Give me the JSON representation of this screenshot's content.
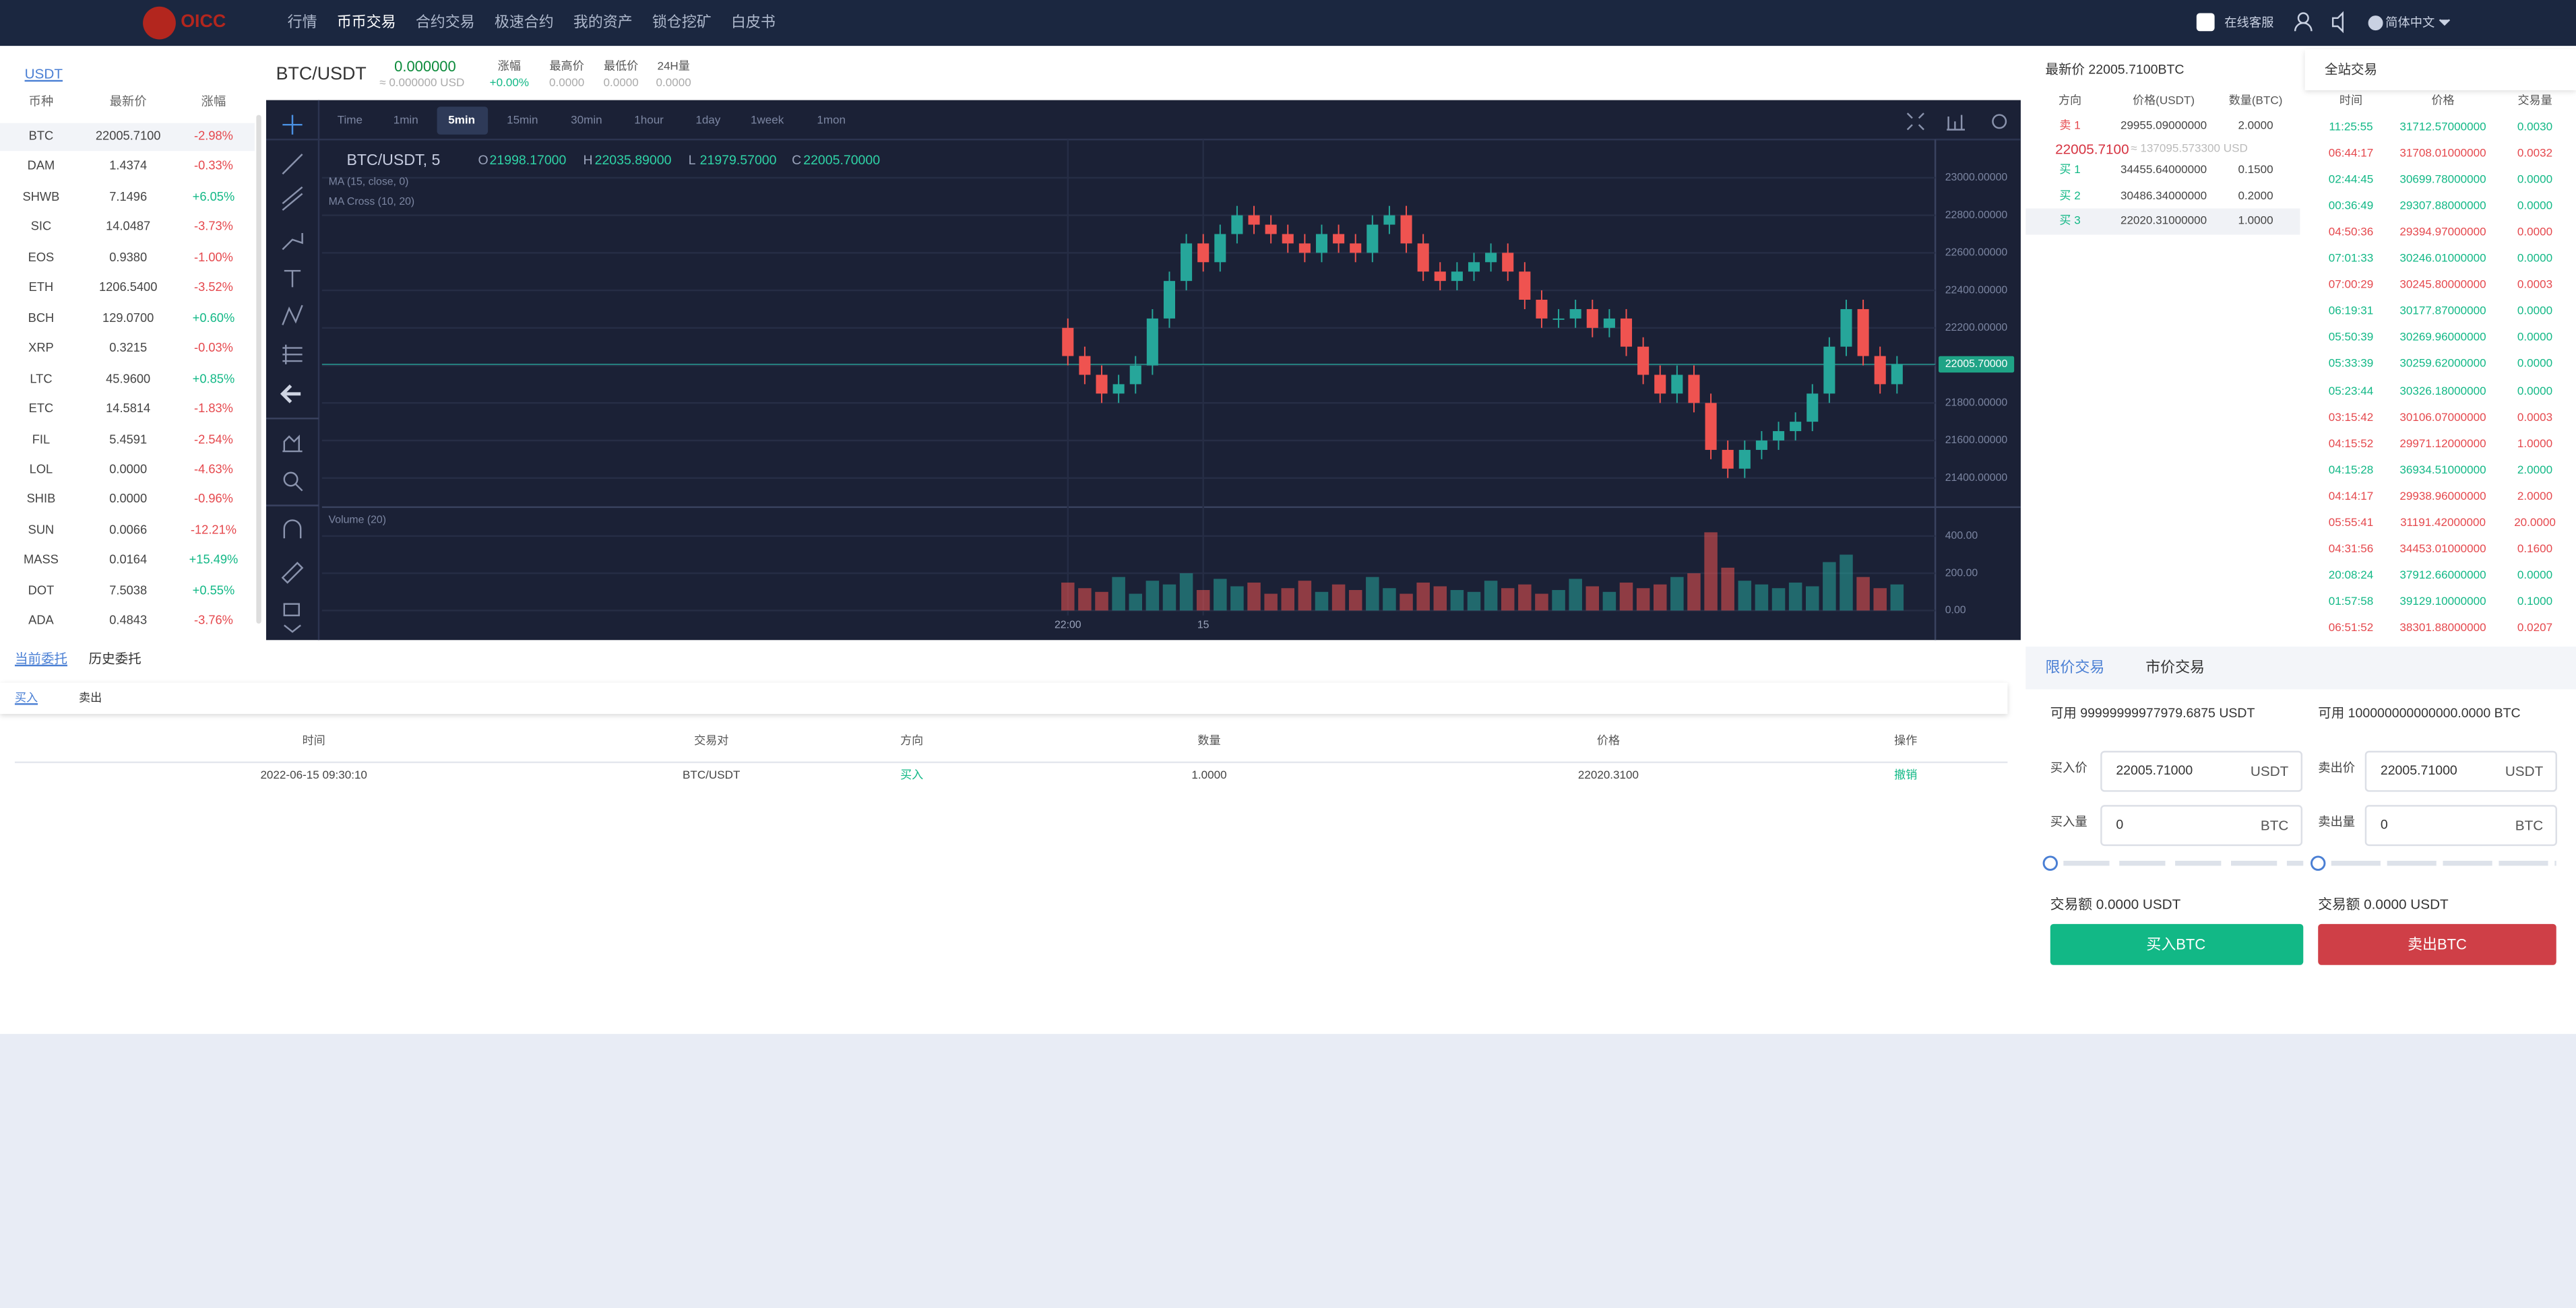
{
  "header": {
    "logo": "OICC",
    "nav": [
      "行情",
      "币币交易",
      "合约交易",
      "极速合约",
      "我的资产",
      "锁仓挖矿",
      "白皮书"
    ],
    "nav_active": 1,
    "support": "在线客服",
    "language": "简体中文"
  },
  "market_list": {
    "tab": "USDT",
    "headers": [
      "币种",
      "最新价",
      "涨幅"
    ],
    "rows": [
      [
        "BTC",
        "22005.7100",
        "-2.98%"
      ],
      [
        "DAM",
        "1.4374",
        "-0.33%"
      ],
      [
        "SHWB",
        "7.1496",
        "+6.05%"
      ],
      [
        "SIC",
        "14.0487",
        "-3.73%"
      ],
      [
        "EOS",
        "0.9380",
        "-1.00%"
      ],
      [
        "ETH",
        "1206.5400",
        "-3.52%"
      ],
      [
        "BCH",
        "129.0700",
        "+0.60%"
      ],
      [
        "XRP",
        "0.3215",
        "-0.03%"
      ],
      [
        "LTC",
        "45.9600",
        "+0.85%"
      ],
      [
        "ETC",
        "14.5814",
        "-1.83%"
      ],
      [
        "FIL",
        "5.4591",
        "-2.54%"
      ],
      [
        "LOL",
        "0.0000",
        "-4.63%"
      ],
      [
        "SHIB",
        "0.0000",
        "-0.96%"
      ],
      [
        "SUN",
        "0.0066",
        "-12.21%"
      ],
      [
        "MASS",
        "0.0164",
        "+15.49%"
      ],
      [
        "DOT",
        "7.5038",
        "+0.55%"
      ],
      [
        "ADA",
        "0.4843",
        "-3.76%"
      ]
    ]
  },
  "ticker": {
    "pair": "BTC/USDT",
    "price": "0.000000",
    "price_usd": "≈ 0.000000 USD",
    "stats": [
      {
        "label": "涨幅",
        "value": "+0.00%"
      },
      {
        "label": "最高价",
        "value": "0.0000"
      },
      {
        "label": "最低价",
        "value": "0.0000"
      },
      {
        "label": "24H量",
        "value": "0.0000"
      }
    ]
  },
  "toolbar": {
    "intervals": [
      "Time",
      "1min",
      "5min",
      "15min",
      "30min",
      "1hour",
      "1day",
      "1week",
      "1mon"
    ],
    "active": 2
  },
  "chart_data": {
    "type": "candlestick",
    "title": "BTC/USDT, 5",
    "ohlc_labels": [
      "O",
      "H",
      "L",
      "C"
    ],
    "ohlc_values": [
      "21998.17000",
      "22035.89000",
      "21979.57000",
      "22005.70000"
    ],
    "indicators": [
      "MA (15, close, 0)",
      "MA Cross (10, 20)"
    ],
    "volume_title": "Volume (20)",
    "up_color": "#26a69a",
    "down_color": "#ef5350",
    "categories": [
      "22:00",
      null,
      null,
      null,
      null,
      null,
      null,
      null,
      "15",
      null,
      null,
      null,
      null,
      null,
      null,
      null,
      null,
      null,
      null,
      null,
      null,
      null,
      null,
      null,
      null,
      null,
      null,
      null,
      null,
      null,
      null,
      null,
      null,
      null,
      null,
      null,
      null,
      null,
      null,
      null,
      null,
      null,
      null,
      null,
      null,
      null,
      null,
      null,
      null,
      null
    ],
    "open": [
      22200,
      22050,
      21950,
      21850,
      21900,
      22000,
      22250,
      22450,
      22650,
      22550,
      22700,
      22800,
      22750,
      22700,
      22650,
      22600,
      22700,
      22650,
      22600,
      22750,
      22800,
      22650,
      22500,
      22450,
      22500,
      22550,
      22600,
      22500,
      22350,
      22250,
      22250,
      22300,
      22200,
      22250,
      22100,
      21950,
      21850,
      21950,
      21800,
      21550,
      21450,
      21550,
      21600,
      21650,
      21700,
      21850,
      22100,
      22300,
      22050,
      21900
    ],
    "high": [
      22250,
      22100,
      22000,
      21950,
      22050,
      22300,
      22500,
      22700,
      22700,
      22750,
      22850,
      22850,
      22800,
      22750,
      22700,
      22750,
      22750,
      22700,
      22800,
      22850,
      22850,
      22700,
      22550,
      22550,
      22600,
      22650,
      22650,
      22550,
      22400,
      22300,
      22350,
      22350,
      22300,
      22300,
      22150,
      22000,
      22000,
      22000,
      21850,
      21600,
      21600,
      21650,
      21700,
      21750,
      21900,
      22150,
      22350,
      22350,
      22100,
      22050
    ],
    "low": [
      22000,
      21900,
      21800,
      21800,
      21850,
      21950,
      22200,
      22400,
      22500,
      22500,
      22650,
      22700,
      22650,
      22600,
      22550,
      22550,
      22600,
      22550,
      22550,
      22700,
      22600,
      22450,
      22400,
      22400,
      22450,
      22500,
      22450,
      22300,
      22200,
      22200,
      22200,
      22150,
      22150,
      22050,
      21900,
      21800,
      21800,
      21750,
      21500,
      21400,
      21400,
      21500,
      21550,
      21600,
      21650,
      21800,
      22050,
      22000,
      21850,
      21850
    ],
    "close": [
      22050,
      21950,
      21850,
      21900,
      22000,
      22250,
      22450,
      22650,
      22550,
      22700,
      22800,
      22750,
      22700,
      22650,
      22600,
      22700,
      22650,
      22600,
      22750,
      22800,
      22650,
      22500,
      22450,
      22500,
      22550,
      22600,
      22500,
      22350,
      22250,
      22250,
      22300,
      22200,
      22250,
      22100,
      21950,
      21850,
      21950,
      21800,
      21550,
      21450,
      21550,
      21600,
      21650,
      21700,
      21850,
      22100,
      22300,
      22050,
      21900,
      22005.7
    ],
    "volume": [
      150,
      120,
      100,
      180,
      90,
      160,
      140,
      200,
      110,
      170,
      130,
      150,
      90,
      120,
      160,
      100,
      140,
      110,
      180,
      120,
      90,
      150,
      130,
      110,
      100,
      160,
      120,
      140,
      90,
      110,
      170,
      130,
      100,
      150,
      120,
      140,
      180,
      200,
      420,
      230,
      160,
      140,
      120,
      150,
      130,
      260,
      300,
      180,
      120,
      140
    ],
    "ylim": [
      21280,
      23160
    ],
    "yticks": [
      {
        "value": 21400,
        "label": "21400.00000"
      },
      {
        "value": 21600,
        "label": "21600.00000"
      },
      {
        "value": 21800,
        "label": "21800.00000"
      },
      {
        "value": 22000,
        "label": "22000.00000"
      },
      {
        "value": 22200,
        "label": "22200.00000"
      },
      {
        "value": 22400,
        "label": "22400.00000"
      },
      {
        "value": 22600,
        "label": "22600.00000"
      },
      {
        "value": 22800,
        "label": "22800.00000"
      },
      {
        "value": 23000,
        "label": "23000.00000"
      }
    ],
    "last": {
      "value": 22005.7,
      "label": "22005.70000"
    },
    "vlim": [
      0,
      520
    ],
    "vticks": [
      {
        "value": 0,
        "label": "0.00"
      },
      {
        "value": 200,
        "label": "200.00"
      },
      {
        "value": 400,
        "label": "400.00"
      }
    ]
  },
  "order_book": {
    "latest": "最新价 22005.7100BTC",
    "headers": [
      "方向",
      "价格(USDT)",
      "数量(BTC)"
    ],
    "sells": [
      [
        "卖 1",
        "29955.09000000",
        "2.0000"
      ]
    ],
    "mid_price": "22005.7100",
    "mid_usd": "≈ 137095.573300 USD",
    "buys": [
      [
        "买 1",
        "34455.64000000",
        "0.1500"
      ],
      [
        "买 2",
        "30486.34000000",
        "0.2000"
      ],
      [
        "买 3",
        "22020.31000000",
        "1.0000"
      ]
    ]
  },
  "trades": {
    "tab": "全站交易",
    "headers": [
      "时间",
      "价格",
      "交易量"
    ],
    "rows": [
      {
        "time": "11:25:55",
        "price": "31712.57000000",
        "amount": "0.0030",
        "color": "#12b886"
      },
      {
        "time": "06:44:17",
        "price": "31708.01000000",
        "amount": "0.0032",
        "color": "#e5484d"
      },
      {
        "time": "02:44:45",
        "price": "30699.78000000",
        "amount": "0.0000",
        "color": "#12b886"
      },
      {
        "time": "00:36:49",
        "price": "29307.88000000",
        "amount": "0.0000",
        "color": "#12b886"
      },
      {
        "time": "04:50:36",
        "price": "29394.97000000",
        "amount": "0.0000",
        "color": "#e5484d"
      },
      {
        "time": "07:01:33",
        "price": "30246.01000000",
        "amount": "0.0000",
        "color": "#12b886"
      },
      {
        "time": "07:00:29",
        "price": "30245.80000000",
        "amount": "0.0003",
        "color": "#e5484d"
      },
      {
        "time": "06:19:31",
        "price": "30177.87000000",
        "amount": "0.0000",
        "color": "#12b886"
      },
      {
        "time": "05:50:39",
        "price": "30269.96000000",
        "amount": "0.0000",
        "color": "#12b886"
      },
      {
        "time": "05:33:39",
        "price": "30259.62000000",
        "amount": "0.0000",
        "color": "#12b886"
      },
      {
        "time": "05:23:44",
        "price": "30326.18000000",
        "amount": "0.0000",
        "color": "#12b886"
      },
      {
        "time": "03:15:42",
        "price": "30106.07000000",
        "amount": "0.0003",
        "color": "#e5484d"
      },
      {
        "time": "04:15:52",
        "price": "29971.12000000",
        "amount": "1.0000",
        "color": "#e5484d"
      },
      {
        "time": "04:15:28",
        "price": "36934.51000000",
        "amount": "2.0000",
        "color": "#12b886"
      },
      {
        "time": "04:14:17",
        "price": "29938.96000000",
        "amount": "2.0000",
        "color": "#e5484d"
      },
      {
        "time": "05:55:41",
        "price": "31191.42000000",
        "amount": "20.0000",
        "color": "#e5484d"
      },
      {
        "time": "04:31:56",
        "price": "34453.01000000",
        "amount": "0.1600",
        "color": "#e5484d"
      },
      {
        "time": "20:08:24",
        "price": "37912.66000000",
        "amount": "0.0000",
        "color": "#12b886"
      },
      {
        "time": "01:57:58",
        "price": "39129.10000000",
        "amount": "0.1000",
        "color": "#12b886"
      },
      {
        "time": "06:51:52",
        "price": "38301.88000000",
        "amount": "0.0207",
        "color": "#e5484d"
      }
    ]
  },
  "orders": {
    "tabs": [
      "当前委托",
      "历史委托"
    ],
    "sub_tabs": [
      "买入",
      "卖出"
    ],
    "headers": [
      "时间",
      "交易对",
      "方向",
      "数量",
      "价格",
      "操作"
    ],
    "rows": [
      [
        "2022-06-15 09:30:10",
        "BTC/USDT",
        "买入",
        "1.0000",
        "22020.3100",
        "撤销"
      ]
    ]
  },
  "trade_form": {
    "tabs": [
      "限价交易",
      "市价交易"
    ],
    "buy": {
      "available": "可用 99999999977979.6875 USDT",
      "price_label": "买入价",
      "price": "22005.71000",
      "price_unit": "USDT",
      "amount_label": "买入量",
      "amount": "0",
      "amount_unit": "BTC",
      "total": "交易额 0.0000 USDT",
      "button": "买入BTC"
    },
    "sell": {
      "available": "可用 100000000000000.0000 BTC",
      "price_label": "卖出价",
      "price": "22005.71000",
      "price_unit": "USDT",
      "amount_label": "卖出量",
      "amount": "0",
      "amount_unit": "BTC",
      "total": "交易额 0.0000 USDT",
      "button": "卖出BTC"
    }
  }
}
